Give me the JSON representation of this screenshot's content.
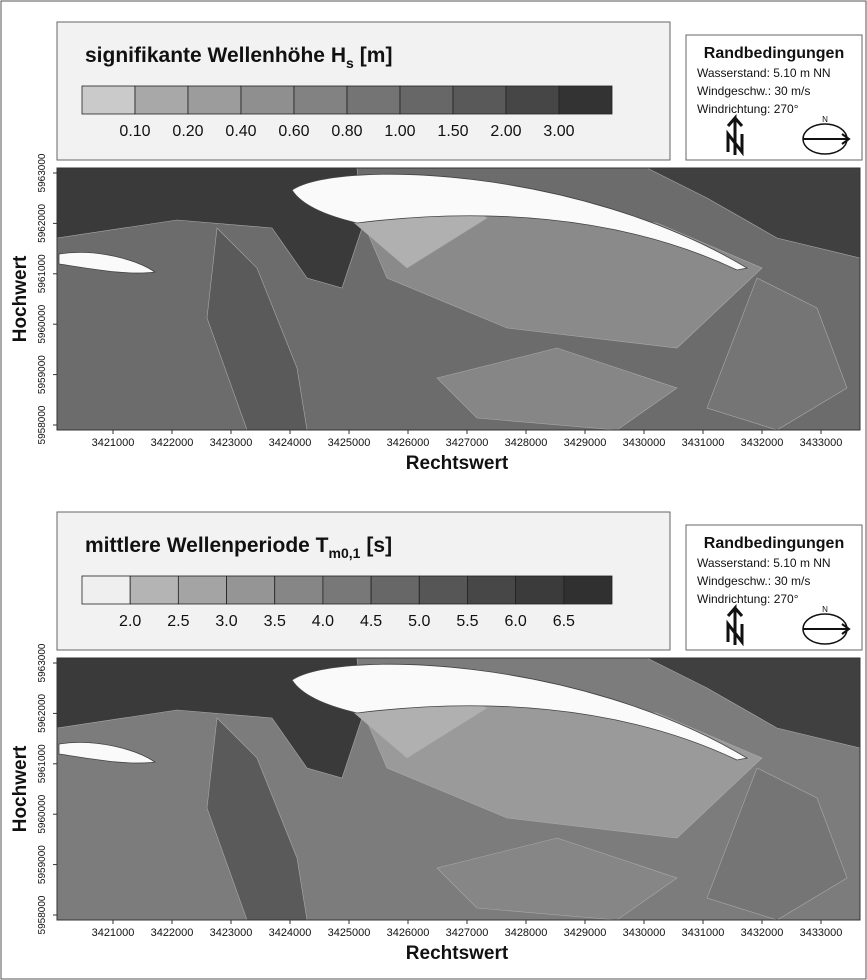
{
  "panels": [
    {
      "legend": {
        "title": "signifikante Wellenhöhe H",
        "title_sub": "s",
        "title_unit": "[m]",
        "labels": [
          "0.10",
          "0.20",
          "0.40",
          "0.60",
          "0.80",
          "1.00",
          "1.50",
          "2.00",
          "3.00"
        ],
        "colors": [
          "#cacaca",
          "#a8a8a8",
          "#9c9c9c",
          "#8f8f8f",
          "#828282",
          "#747474",
          "#676767",
          "#595959",
          "#464646",
          "#333333"
        ]
      },
      "conditions": {
        "title": "Randbedingungen",
        "lines": [
          "Wasserstand:   5.10 m NN",
          "Windgeschw.:  30 m/s",
          "Windrichtung: 270°"
        ],
        "compass_label": "N"
      },
      "map": {
        "y_label": "Hochwert",
        "x_label": "Rechtswert",
        "y_ticks": [
          "5958000",
          "5959000",
          "5960000",
          "5961000",
          "5962000",
          "5963000"
        ],
        "x_ticks": [
          "3421000",
          "3422000",
          "3423000",
          "3424000",
          "3425000",
          "3426000",
          "3427000",
          "3428000",
          "3429000",
          "3430000",
          "3431000",
          "3432000",
          "3433000"
        ]
      }
    },
    {
      "legend": {
        "title": "mittlere Wellenperiode T",
        "title_sub": "m0,1",
        "title_unit": "[s]",
        "labels": [
          "2.0",
          "2.5",
          "3.0",
          "3.5",
          "4.0",
          "4.5",
          "5.0",
          "5.5",
          "6.0",
          "6.5"
        ],
        "colors": [
          "#efefef",
          "#b4b4b4",
          "#a4a4a4",
          "#959595",
          "#868686",
          "#787878",
          "#676767",
          "#565656",
          "#474747",
          "#3b3b3b",
          "#303030"
        ]
      },
      "conditions": {
        "title": "Randbedingungen",
        "lines": [
          "Wasserstand:   5.10 m NN",
          "Windgeschw.:  30 m/s",
          "Windrichtung: 270°"
        ],
        "compass_label": "N"
      },
      "map": {
        "y_label": "Hochwert",
        "x_label": "Rechtswert",
        "y_ticks": [
          "5958000",
          "5959000",
          "5960000",
          "5961000",
          "5962000",
          "5963000"
        ],
        "x_ticks": [
          "3421000",
          "3422000",
          "3423000",
          "3424000",
          "3425000",
          "3426000",
          "3427000",
          "3428000",
          "3429000",
          "3430000",
          "3431000",
          "3432000",
          "3433000"
        ]
      }
    }
  ]
}
